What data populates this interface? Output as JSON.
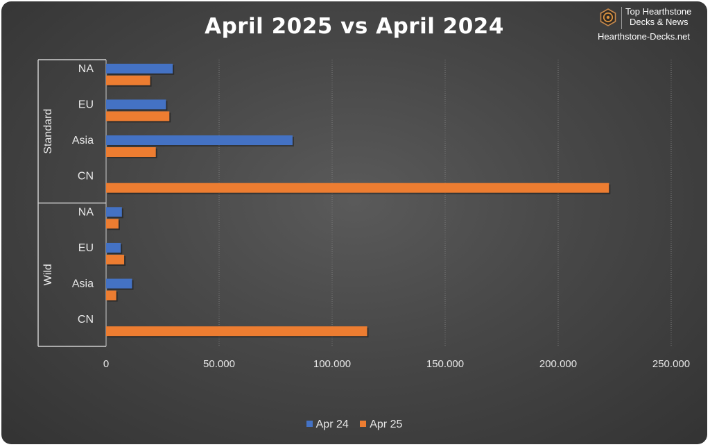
{
  "brand": {
    "line1": "Top Hearthstone",
    "line2": "Decks & News",
    "url": "Hearthstone-Decks.net",
    "logo_icon": "hearthstone-logo-icon"
  },
  "chart_data": {
    "type": "bar",
    "orientation": "horizontal",
    "title": "April 2025 vs April 2024",
    "xlim": [
      0,
      250000
    ],
    "x_ticks": [
      0,
      50000,
      100000,
      150000,
      200000,
      250000
    ],
    "x_tick_labels": [
      "0",
      "50.000",
      "100.000",
      "150.000",
      "200.000",
      "250.000"
    ],
    "grid": "vertical-dashed",
    "legend_position": "bottom",
    "groups": [
      {
        "name": "Standard",
        "categories": [
          "NA",
          "EU",
          "Asia",
          "CN"
        ]
      },
      {
        "name": "Wild",
        "categories": [
          "NA",
          "EU",
          "Asia",
          "CN"
        ]
      }
    ],
    "series": [
      {
        "name": "Apr 24",
        "color": "#4472C4",
        "values": [
          29500,
          26500,
          82500,
          0,
          7000,
          6500,
          11500,
          0
        ]
      },
      {
        "name": "Apr 25",
        "color": "#ED7D31",
        "values": [
          19500,
          28000,
          22000,
          222500,
          5500,
          8000,
          4500,
          115500
        ]
      }
    ]
  }
}
